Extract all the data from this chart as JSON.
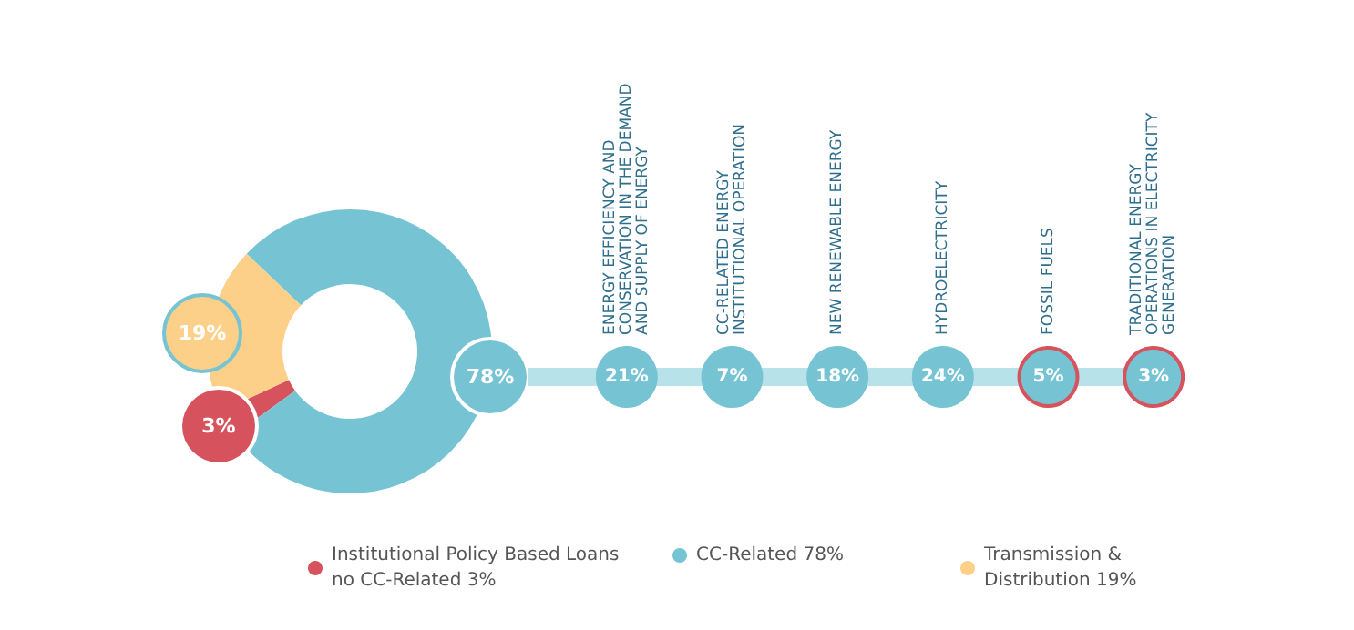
{
  "chart_data": [
    {
      "type": "donut",
      "categories": [
        "Institutional Policy Based Loans no CC-Related 3%",
        "CC-Related 78%",
        "Transmission & Distribution 19%"
      ],
      "values": [
        3,
        78,
        19
      ],
      "colors": [
        "#d6525c",
        "#76c4d3",
        "#fdd08a"
      ],
      "value_labels": [
        "3%",
        "78%",
        "19%"
      ],
      "legend": "bottom"
    },
    {
      "type": "other",
      "categories": [
        "ENERGY EFFICIENCY AND CONSERVATION IN THE DEMAND AND SUPPLY OF ENERGY",
        "CC-RELATED ENERGY INSTITUTIONAL OPERATION",
        "NEW RENEWABLE ENERGY",
        "HYDROELECTRICITY",
        "FOSSIL FUELS",
        "TRADITIONAL ENERGY OPERATIONS IN ELECTRICITY GENERATION"
      ],
      "values": [
        21,
        7,
        18,
        24,
        5,
        3
      ],
      "value_labels": [
        "21%",
        "7%",
        "18%",
        "24%",
        "5%",
        "3%"
      ],
      "color": "#76c4d3",
      "colors": [
        "#76c4d3",
        "#76c4d3",
        "#76c4d3",
        "#76c4d3",
        "#d6525c",
        "#d6525c"
      ]
    }
  ]
}
